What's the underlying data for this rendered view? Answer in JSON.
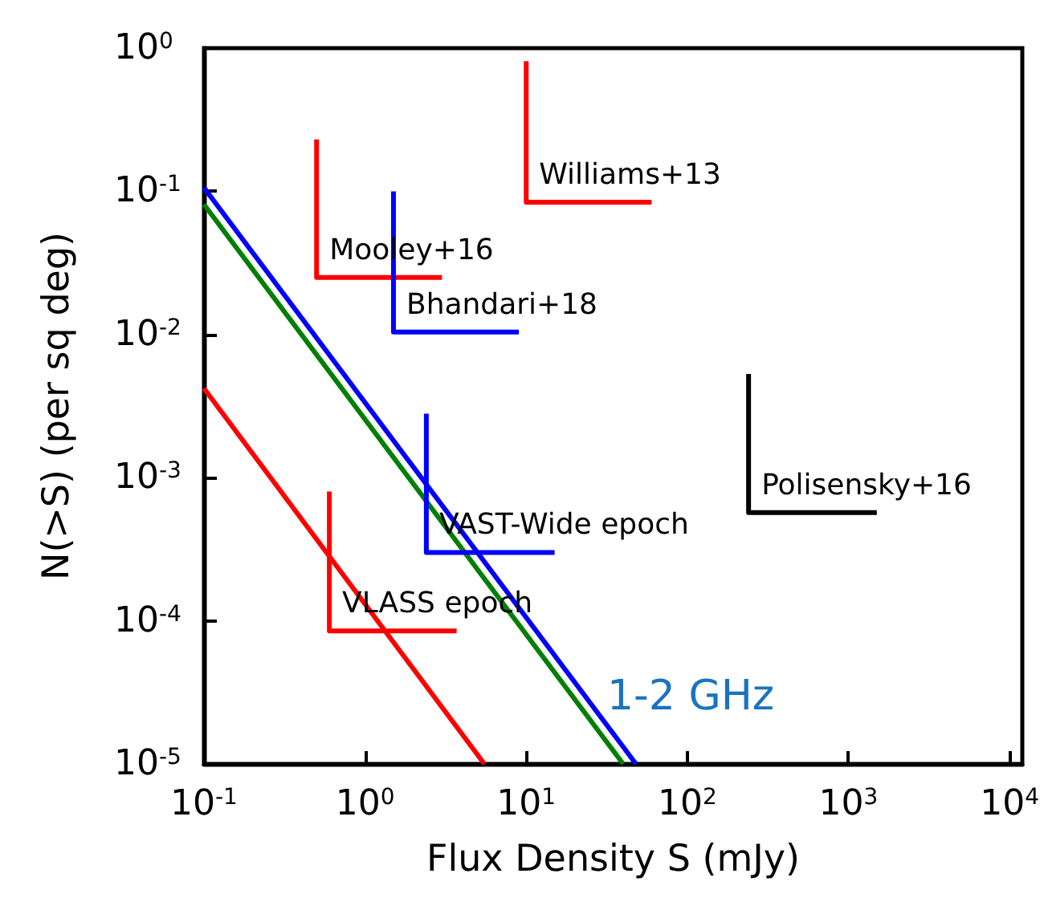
{
  "chart_data": {
    "type": "line",
    "xlabel": "Flux Density S (mJy)",
    "ylabel": "N(>S) (per sq deg)",
    "log": "xy",
    "grid": false,
    "legend": false,
    "marker": "none",
    "line_style": "solid",
    "xlim": [
      0.1,
      12000
    ],
    "ylim": [
      1e-05,
      1
    ],
    "xticks": [
      {
        "value": 0.1,
        "label": "10$^{-1}$"
      },
      {
        "value": 1,
        "label": "10$^{0}$"
      },
      {
        "value": 10,
        "label": "10$^{1}$"
      },
      {
        "value": 100,
        "label": "10$^{2}$"
      },
      {
        "value": 1000,
        "label": "10$^{3}$"
      },
      {
        "value": 10000,
        "label": "10$^{4}$"
      }
    ],
    "yticks": [
      {
        "value": 1e-05,
        "label": "10$^{-5}$"
      },
      {
        "value": 0.0001,
        "label": "10$^{-4}$"
      },
      {
        "value": 0.001,
        "label": "10$^{-3}$"
      },
      {
        "value": 0.01,
        "label": "10$^{-2}$"
      },
      {
        "value": 0.1,
        "label": "10$^{-1}$"
      },
      {
        "value": 1,
        "label": "10$^{0}$"
      }
    ],
    "series": [
      {
        "color": "#0000ff",
        "x": [
          0.1,
          48
        ],
        "values": [
          0.106,
          1e-05
        ]
      },
      {
        "color": "#008000",
        "x": [
          0.1,
          40
        ],
        "values": [
          0.081,
          1e-05
        ]
      },
      {
        "color": "#ff0000",
        "x": [
          0.1,
          5.5
        ],
        "values": [
          0.0042,
          1e-05
        ]
      },
      {
        "name": "Williams+13",
        "color": "#ff0000",
        "x": [
          10,
          10,
          60
        ],
        "values": [
          0.81,
          0.084,
          0.084
        ]
      },
      {
        "name": "Mooley+16",
        "color": "#ff0000",
        "x": [
          0.5,
          0.5,
          3.0
        ],
        "values": [
          0.23,
          0.025,
          0.025
        ]
      },
      {
        "name": "Bhandari+18",
        "color": "#0000ff",
        "x": [
          1.5,
          1.5,
          9
        ],
        "values": [
          0.1,
          0.0104,
          0.0104
        ]
      },
      {
        "name": "VAST-Wide epoch",
        "color": "#0000ff",
        "x": [
          2.4,
          2.4,
          15
        ],
        "values": [
          0.0028,
          0.0003,
          0.0003
        ]
      },
      {
        "name": "VLASS epoch",
        "color": "#ff0000",
        "x": [
          0.6,
          0.6,
          3.7
        ],
        "values": [
          0.0008,
          8.5e-05,
          8.5e-05
        ]
      },
      {
        "name": "Polisensky+16",
        "color": "#000000",
        "x": [
          240,
          240,
          1500
        ],
        "values": [
          0.0053,
          0.00057,
          0.00057
        ]
      }
    ],
    "annotations": [
      "1-2 GHz"
    ]
  }
}
